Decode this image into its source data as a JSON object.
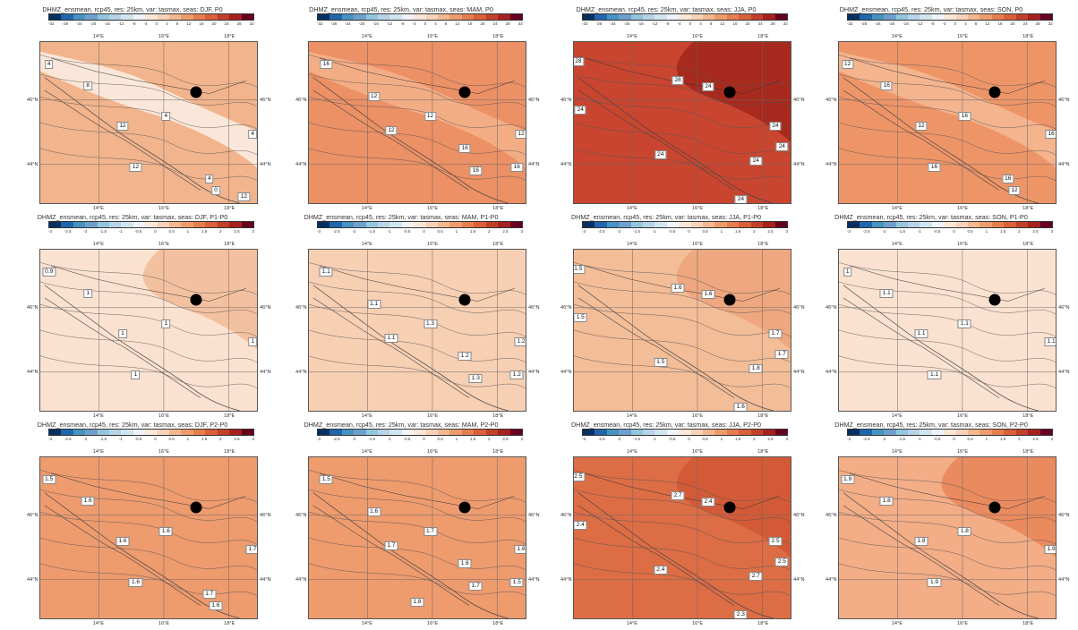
{
  "colorbar_ramp": [
    "#053061",
    "#2166ac",
    "#4393c3",
    "#6fa0cc",
    "#92c5de",
    "#b6d3e8",
    "#d1e5f0",
    "#eef4f9",
    "#fbe7d7",
    "#f8d2b8",
    "#f4b891",
    "#ee9b6c",
    "#e57e4d",
    "#d9603a",
    "#c2402a",
    "#a8201e",
    "#67001f"
  ],
  "fill_colors": {
    "P0_DJF": "#f2b48c",
    "P0_DJF_low": "#fbe7d9",
    "P0_MAM": "#ec9065",
    "P0_MAM_low": "#f3ad85",
    "P0_JJA": "#c9452f",
    "P0_JJA_high": "#a82a1f",
    "P0_SON": "#ee9568",
    "P0_SON_low": "#f3b48e",
    "P1_DJF": "#fbe2d0",
    "P1_DJF_high": "#f4c1a0",
    "P1_MAM": "#f7cfb3",
    "P1_JJA": "#f3bd98",
    "P1_JJA_high": "#eea77f",
    "P1_SON": "#fbe2d0",
    "P2_DJF": "#ee9b6e",
    "P2_MAM": "#ee9b6e",
    "P2_JJA": "#dd6d45",
    "P2_JJA_high": "#d35a37",
    "P2_SON": "#f3ad87",
    "P2_SON_high": "#ea8a5f"
  },
  "rows": [
    {
      "panels": [
        {
          "title": "DHMZ_ensmean, rcp45, res: 25km, var: tasmax, seas: DJF, P0",
          "cbar_ticks": [
            "-32",
            "-28",
            "-24",
            "-20",
            "-16",
            "-12",
            "-8",
            "-4",
            "0",
            "4",
            "8",
            "12",
            "16",
            "20",
            "24",
            "28",
            "32"
          ],
          "contour_labels": [
            "4",
            "8",
            "4",
            "4",
            "12",
            "12",
            "4",
            "0",
            "12"
          ]
        },
        {
          "title": "DHMZ_ensmean, rcp45, res: 25km, var: tasmax, seas: MAM, P0",
          "cbar_ticks": [
            "-32",
            "-28",
            "-24",
            "-20",
            "-16",
            "-12",
            "-8",
            "-4",
            "0",
            "4",
            "8",
            "12",
            "16",
            "20",
            "24",
            "28",
            "32"
          ],
          "contour_labels": [
            "16",
            "12",
            "12",
            "12",
            "16",
            "12",
            "16",
            "16"
          ]
        },
        {
          "title": "DHMZ_ensmean, rcp45, res: 25km, var: tasmax, seas: JJA, P0",
          "cbar_ticks": [
            "-32",
            "-28",
            "-24",
            "-20",
            "-16",
            "-12",
            "-8",
            "-4",
            "0",
            "4",
            "8",
            "12",
            "16",
            "20",
            "24",
            "28",
            "32"
          ],
          "contour_labels": [
            "28",
            "28",
            "24",
            "24",
            "24",
            "24",
            "24",
            "24",
            "24"
          ]
        },
        {
          "title": "DHMZ_ensmean, rcp45, res: 25km, var: tasmax, seas: SON, P0",
          "cbar_ticks": [
            "-32",
            "-28",
            "-24",
            "-20",
            "-16",
            "-12",
            "-8",
            "-4",
            "0",
            "4",
            "8",
            "12",
            "16",
            "20",
            "24",
            "28",
            "32"
          ],
          "contour_labels": [
            "12",
            "16",
            "16",
            "16",
            "12",
            "16",
            "16",
            "12"
          ]
        }
      ]
    },
    {
      "panels": [
        {
          "title": "DHMZ_ensmean, rcp45, res: 25km, var: tasmax, seas: DJF, P1-P0",
          "cbar_ticks": [
            "-3",
            "-2.5",
            "-2",
            "-1.5",
            "-1",
            "-0.5",
            "0",
            "0.5",
            "1",
            "1.5",
            "2",
            "2.5",
            "3"
          ],
          "contour_labels": [
            "0.9",
            "1",
            "1",
            "1",
            "1",
            "1"
          ]
        },
        {
          "title": "DHMZ_ensmean, rcp45, res: 25km, var: tasmax, seas: MAM, P1-P0",
          "cbar_ticks": [
            "-3",
            "-2.5",
            "-2",
            "-1.5",
            "-1",
            "-0.5",
            "0",
            "0.5",
            "1",
            "1.5",
            "2",
            "2.5",
            "3"
          ],
          "contour_labels": [
            "1.1",
            "1.1",
            "1.3",
            "1.1",
            "1.2",
            "1.2",
            "1.3",
            "1.2"
          ]
        },
        {
          "title": "DHMZ_ensmean, rcp45, res: 25km, var: tasmax, seas: JJA, P1-P0",
          "cbar_ticks": [
            "-3",
            "-2.5",
            "-2",
            "-1.5",
            "-1",
            "-0.5",
            "0",
            "0.5",
            "1",
            "1.5",
            "2",
            "2.5",
            "3"
          ],
          "contour_labels": [
            "1.5",
            "1.6",
            "1.6",
            "1.5",
            "1.7",
            "1.7",
            "1.8",
            "1.5",
            "1.6"
          ]
        },
        {
          "title": "DHMZ_ensmean, rcp45, res: 25km, var: tasmax, seas: SON, P1-P0",
          "cbar_ticks": [
            "-3",
            "-2.5",
            "-2",
            "-1.5",
            "-1",
            "-0.5",
            "0",
            "0.5",
            "1",
            "1.5",
            "2",
            "2.5",
            "3"
          ],
          "contour_labels": [
            "1",
            "1.1",
            "1.1",
            "1.1",
            "1.1",
            "1.1"
          ]
        }
      ]
    },
    {
      "panels": [
        {
          "title": "DHMZ_ensmean, rcp45, res: 25km, var: tasmax, seas: DJF, P2-P0",
          "cbar_ticks": [
            "-3",
            "-2.5",
            "-2",
            "-1.5",
            "-1",
            "-0.5",
            "0",
            "0.5",
            "1",
            "1.5",
            "2",
            "2.5",
            "3"
          ],
          "contour_labels": [
            "1.5",
            "1.6",
            "1.6",
            "1.7",
            "1.6",
            "1.6",
            "1.7",
            "1.6"
          ]
        },
        {
          "title": "DHMZ_ensmean, rcp45, res: 25km, var: tasmax, seas: MAM, P2-P0",
          "cbar_ticks": [
            "-3",
            "-2.5",
            "-2",
            "-1.5",
            "-1",
            "-0.5",
            "0",
            "0.5",
            "1",
            "1.5",
            "2",
            "2.5",
            "3"
          ],
          "contour_labels": [
            "1.5",
            "1.6",
            "1.7",
            "1.7",
            "1.6",
            "1.6",
            "1.7",
            "1.5",
            "1.8"
          ]
        },
        {
          "title": "DHMZ_ensmean, rcp45, res: 25km, var: tasmax, seas: JJA, P2-P0",
          "cbar_ticks": [
            "-3",
            "-2.5",
            "-2",
            "-1.5",
            "-1",
            "-0.5",
            "0",
            "0.5",
            "1",
            "1.5",
            "2",
            "2.5",
            "3"
          ],
          "contour_labels": [
            "2.5",
            "2.7",
            "2.4",
            "2.4",
            "2.5",
            "2.5",
            "2.7",
            "2.4",
            "2.3"
          ]
        },
        {
          "title": "DHMZ_ensmean, rcp45, res: 25km, var: tasmax, seas: SON, P2-P0",
          "cbar_ticks": [
            "-3",
            "-2.5",
            "-2",
            "-1.5",
            "-1",
            "-0.5",
            "0",
            "0.5",
            "1",
            "1.5",
            "2",
            "2.5",
            "3"
          ],
          "contour_labels": [
            "1.9",
            "1.8",
            "1.8",
            "1.9",
            "1.8",
            "1.9"
          ]
        }
      ]
    }
  ],
  "lon_labels": [
    "14°E",
    "16°E",
    "18°E"
  ],
  "lat_labels": [
    "46°N",
    "44°N"
  ]
}
